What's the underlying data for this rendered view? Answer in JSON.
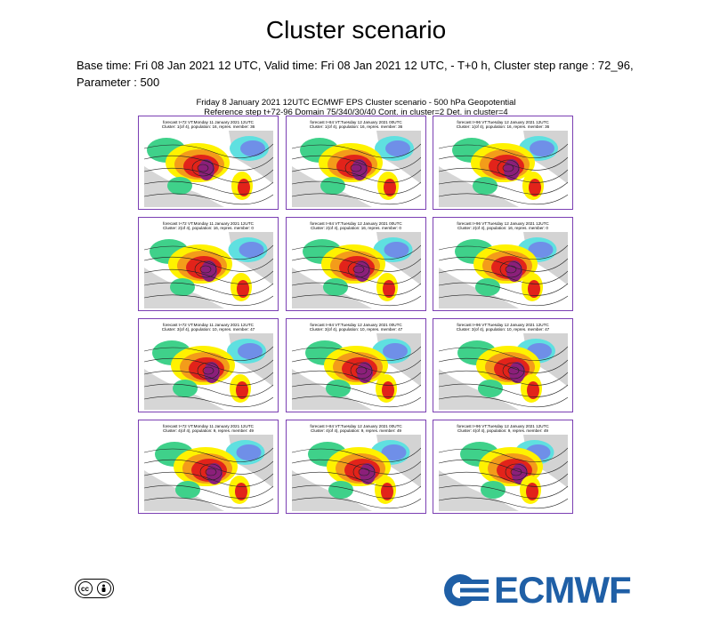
{
  "header": {
    "title": "Cluster scenario",
    "meta_text": "Base time: Fri 08 Jan 2021 12 UTC, Valid time: Fri 08 Jan 2021 12 UTC, - T+0 h, Cluster step range : 72_96, Parameter : 500"
  },
  "figure": {
    "title_line1": "Friday 8 January 2021 12UTC ECMWF EPS Cluster scenario - 500 hPa Geopotential",
    "title_line2": "Reference step t+72-96 Domain 75/340/30/40 Cont. in cluster=2 Det. in cluster=4",
    "frame_color": "#7b3fb3"
  },
  "panels": [
    {
      "forecast": "forecast t+72 VT:Monday 11 January 2021 12UTC",
      "cluster": "Cluster: 1(of 4), population: 16, repres. member: 36"
    },
    {
      "forecast": "forecast t+84 VT:Tuesday 12 January 2021 00UTC",
      "cluster": "Cluster: 1(of 4), population: 16, repres. member: 36"
    },
    {
      "forecast": "forecast t+96 VT:Tuesday 12 January 2021 12UTC",
      "cluster": "Cluster: 1(of 4), population: 16, repres. member: 36"
    },
    {
      "forecast": "forecast t+72 VT:Monday 11 January 2021 12UTC",
      "cluster": "Cluster: 2(of 4), population: 16, repres. member: 0"
    },
    {
      "forecast": "forecast t+84 VT:Tuesday 12 January 2021 00UTC",
      "cluster": "Cluster: 2(of 4), population: 16, repres. member: 0"
    },
    {
      "forecast": "forecast t+96 VT:Tuesday 12 January 2021 12UTC",
      "cluster": "Cluster: 2(of 4), population: 16, repres. member: 0"
    },
    {
      "forecast": "forecast t+72 VT:Monday 11 January 2021 12UTC",
      "cluster": "Cluster: 3(of 4), population: 10, repres. member: 47"
    },
    {
      "forecast": "forecast t+84 VT:Tuesday 12 January 2021 00UTC",
      "cluster": "Cluster: 3(of 4), population: 10, repres. member: 47"
    },
    {
      "forecast": "forecast t+96 VT:Tuesday 12 January 2021 12UTC",
      "cluster": "Cluster: 3(of 4), population: 10, repres. member: 47"
    },
    {
      "forecast": "forecast t+72 VT:Monday 11 January 2021 12UTC",
      "cluster": "Cluster: 4(of 4), population: 9, repres. member: 49"
    },
    {
      "forecast": "forecast t+84 VT:Tuesday 12 January 2021 00UTC",
      "cluster": "Cluster: 4(of 4), population: 9, repres. member: 49"
    },
    {
      "forecast": "forecast t+96 VT:Tuesday 12 January 2021 12UTC",
      "cluster": "Cluster: 4(of 4), population: 9, repres. member: 49"
    }
  ],
  "footer": {
    "license_badge": "cc",
    "logo_text": "ECMWF",
    "logo_color": "#1f5fa6"
  },
  "colors": {
    "anomaly_red": "#e2231a",
    "anomaly_orange": "#f39c1a",
    "anomaly_yellow": "#fff200",
    "anomaly_green": "#3fd18a",
    "anomaly_cyan": "#5fe0e0",
    "anomaly_blue": "#6f8fe8",
    "anomaly_purple": "#8b1f7a",
    "land_grey": "#b5b5b5"
  }
}
